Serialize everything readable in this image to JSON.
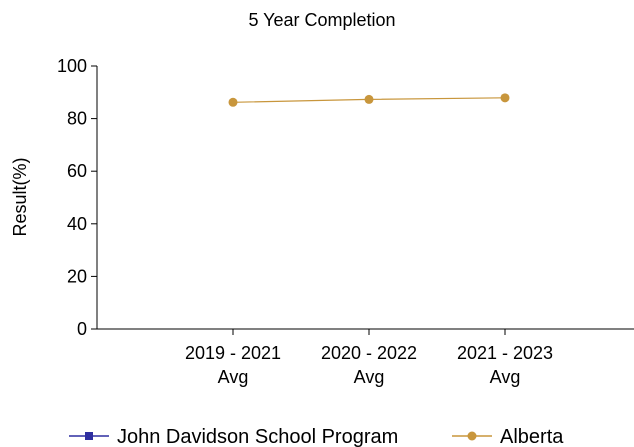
{
  "chart_data": {
    "type": "line",
    "title": "5 Year Completion",
    "ylabel": "Result(%)",
    "xlabel": "",
    "ylim": [
      0,
      100
    ],
    "yticks": [
      0,
      20,
      40,
      60,
      80,
      100
    ],
    "categories": [
      [
        "2019 - 2021",
        "Avg"
      ],
      [
        "2020 - 2022",
        "Avg"
      ],
      [
        "2021 - 2023",
        "Avg"
      ]
    ],
    "series": [
      {
        "name": "John Davidson School Program",
        "values": [
          null,
          null,
          null
        ],
        "color": "#2e2ea0",
        "marker": "square"
      },
      {
        "name": "Alberta",
        "values": [
          86.2,
          87.3,
          87.9
        ],
        "color": "#c8963c",
        "marker": "circle"
      }
    ],
    "grid": false,
    "legend": "bottom"
  }
}
